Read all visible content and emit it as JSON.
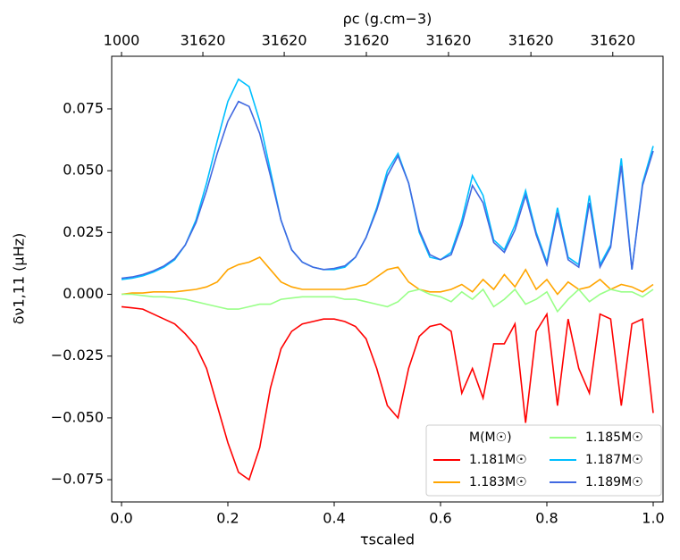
{
  "chart_data": {
    "type": "line",
    "x_label": "τscaled",
    "y_label": "δν1,11 (μHz)",
    "x2_label": "ρc (g.cm−3)",
    "legend_title": "M(M☉)",
    "legend": "lower right",
    "xlim": [
      -0.0185,
      1.0185
    ],
    "ylim": [
      -0.084,
      0.0963
    ],
    "xticks": [
      {
        "value": 0,
        "label": "0.0"
      },
      0.2,
      0.4,
      0.6,
      0.8,
      {
        "value": 1,
        "label": "1.0"
      }
    ],
    "yticks": [
      {
        "value": -0.075,
        "label": "−0.075"
      },
      {
        "value": -0.05,
        "label": "−0.050"
      },
      {
        "value": -0.025,
        "label": "−0.025"
      },
      {
        "value": 0,
        "label": "0.000"
      },
      {
        "value": 0.025,
        "label": "0.025"
      },
      {
        "value": 0.05,
        "label": "0.050"
      },
      {
        "value": 0.075,
        "label": "0.075"
      }
    ],
    "x2lim": [
      -0.0185,
      1.0185
    ],
    "x2ticks": [
      {
        "value": 0,
        "label": "1000"
      },
      {
        "value": 0.153,
        "label": "31620"
      },
      {
        "value": 0.306,
        "label": "31620"
      },
      {
        "value": 0.4605,
        "label": "31620"
      },
      {
        "value": 0.615,
        "label": "31620"
      },
      {
        "value": 0.77,
        "label": "31620"
      },
      {
        "value": 0.924,
        "label": "31620"
      }
    ],
    "x": [
      0,
      0.02,
      0.04,
      0.06,
      0.08,
      0.1,
      0.12,
      0.14,
      0.16,
      0.18,
      0.2,
      0.22,
      0.24,
      0.26,
      0.28,
      0.3,
      0.32,
      0.34,
      0.36,
      0.38,
      0.4,
      0.42,
      0.44,
      0.46,
      0.48,
      0.5,
      0.52,
      0.54,
      0.56,
      0.58,
      0.6,
      0.62,
      0.64,
      0.66,
      0.68,
      0.7,
      0.72,
      0.74,
      0.76,
      0.78,
      0.8,
      0.82,
      0.84,
      0.86,
      0.88,
      0.9,
      0.92,
      0.94,
      0.96,
      0.98,
      1
    ],
    "series": [
      {
        "name": "1.181M☉",
        "color": "#ff0000",
        "values": [
          -0.005,
          -0.0055,
          -0.006,
          -0.008,
          -0.01,
          -0.012,
          -0.016,
          -0.021,
          -0.03,
          -0.045,
          -0.06,
          -0.072,
          -0.075,
          -0.062,
          -0.038,
          -0.022,
          -0.015,
          -0.012,
          -0.011,
          -0.01,
          -0.01,
          -0.011,
          -0.013,
          -0.018,
          -0.03,
          -0.045,
          -0.05,
          -0.03,
          -0.017,
          -0.013,
          -0.012,
          -0.015,
          -0.04,
          -0.03,
          -0.042,
          -0.02,
          -0.02,
          -0.012,
          -0.052,
          -0.015,
          -0.008,
          -0.045,
          -0.01,
          -0.03,
          -0.04,
          -0.008,
          -0.01,
          -0.045,
          -0.012,
          -0.01,
          -0.048
        ]
      },
      {
        "name": "1.183M☉",
        "color": "#ffa500",
        "values": [
          0,
          0.0005,
          0.0005,
          0.001,
          0.001,
          0.001,
          0.0015,
          0.002,
          0.003,
          0.005,
          0.01,
          0.012,
          0.013,
          0.015,
          0.01,
          0.005,
          0.003,
          0.002,
          0.002,
          0.002,
          0.002,
          0.002,
          0.003,
          0.004,
          0.007,
          0.01,
          0.011,
          0.005,
          0.002,
          0.001,
          0.001,
          0.002,
          0.004,
          0.001,
          0.006,
          0.002,
          0.008,
          0.003,
          0.01,
          0.002,
          0.006,
          0.0,
          0.005,
          0.002,
          0.003,
          0.006,
          0.002,
          0.004,
          0.003,
          0.001,
          0.004
        ]
      },
      {
        "name": "1.185M☉",
        "color": "#99ff88",
        "values": [
          0,
          0,
          -0.0005,
          -0.001,
          -0.001,
          -0.0015,
          -0.002,
          -0.003,
          -0.004,
          -0.005,
          -0.006,
          -0.006,
          -0.005,
          -0.004,
          -0.004,
          -0.002,
          -0.0015,
          -0.001,
          -0.001,
          -0.001,
          -0.001,
          -0.002,
          -0.002,
          -0.003,
          -0.004,
          -0.005,
          -0.003,
          0.001,
          0.002,
          0.0,
          -0.001,
          -0.003,
          0.001,
          -0.002,
          0.002,
          -0.005,
          -0.002,
          0.002,
          -0.004,
          -0.002,
          0.001,
          -0.007,
          -0.002,
          0.002,
          -0.003,
          0.0,
          0.002,
          0.001,
          0.001,
          -0.001,
          0.002
        ]
      },
      {
        "name": "1.187M☉",
        "color": "#00bfff",
        "values": [
          0.006,
          0.0065,
          0.0075,
          0.009,
          0.011,
          0.014,
          0.02,
          0.03,
          0.045,
          0.062,
          0.078,
          0.087,
          0.084,
          0.07,
          0.05,
          0.03,
          0.018,
          0.013,
          0.011,
          0.01,
          0.01,
          0.011,
          0.015,
          0.023,
          0.035,
          0.05,
          0.057,
          0.045,
          0.025,
          0.015,
          0.014,
          0.017,
          0.03,
          0.048,
          0.04,
          0.022,
          0.018,
          0.028,
          0.042,
          0.025,
          0.013,
          0.035,
          0.015,
          0.012,
          0.04,
          0.012,
          0.02,
          0.055,
          0.01,
          0.045,
          0.06
        ]
      },
      {
        "name": "1.189M☉",
        "color": "#4169e1",
        "values": [
          0.0065,
          0.007,
          0.008,
          0.0095,
          0.0115,
          0.0145,
          0.02,
          0.029,
          0.042,
          0.057,
          0.07,
          0.078,
          0.076,
          0.065,
          0.048,
          0.03,
          0.018,
          0.013,
          0.011,
          0.01,
          0.0105,
          0.0115,
          0.015,
          0.023,
          0.034,
          0.048,
          0.056,
          0.045,
          0.026,
          0.016,
          0.014,
          0.016,
          0.028,
          0.044,
          0.037,
          0.021,
          0.017,
          0.026,
          0.04,
          0.024,
          0.012,
          0.033,
          0.014,
          0.011,
          0.037,
          0.011,
          0.019,
          0.052,
          0.01,
          0.044,
          0.058
        ]
      }
    ]
  }
}
